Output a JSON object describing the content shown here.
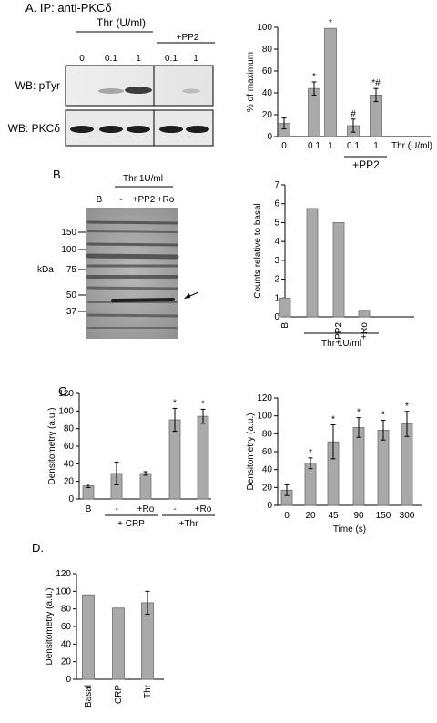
{
  "panelA": {
    "letter": "A. IP: anti-PKCδ",
    "treatment": "Thr (U/ml)",
    "pp2": "+PP2",
    "lanes": [
      "0",
      "0.1",
      "1",
      "0.1",
      "1"
    ],
    "blot1": "WB: pTyr",
    "blot2": "WB: PKCδ"
  },
  "panelB": {
    "letter": "B.",
    "treatment": "Thr 1U/ml",
    "lanes": [
      "B",
      "-",
      "+PP2",
      "+Ro"
    ],
    "markers": [
      "150",
      "100",
      "75",
      "50",
      "37"
    ],
    "kda": "kDa"
  },
  "panelC": {
    "letter": "C."
  },
  "panelD": {
    "letter": "D."
  },
  "chart_data": [
    {
      "id": "A",
      "type": "bar",
      "categories": [
        "0",
        "0.1",
        "1",
        "0.1",
        "1"
      ],
      "values": [
        12,
        44,
        99,
        10,
        38
      ],
      "errors": [
        5,
        6,
        0,
        6,
        6
      ],
      "marks": [
        "",
        "*",
        "*",
        "#",
        "*#"
      ],
      "ylabel": "% of maximum",
      "xlabel": "Thr (U/ml)",
      "group_label": "+PP2",
      "yticks": [
        "0",
        "20",
        "40",
        "60",
        "80",
        "100"
      ],
      "ylim": [
        0,
        110
      ]
    },
    {
      "id": "B",
      "type": "bar",
      "categories": [
        "B",
        "",
        "+PP2",
        "+Ro"
      ],
      "values": [
        1.0,
        5.75,
        5.0,
        0.35
      ],
      "ylabel": "Counts relative to basal",
      "group_label": "Thr 1U/ml",
      "yticks": [
        "0",
        "1",
        "2",
        "3",
        "4",
        "5",
        "6",
        "7"
      ],
      "ylim": [
        0,
        7
      ]
    },
    {
      "id": "C1",
      "type": "bar",
      "categories": [
        "B",
        "-",
        "+Ro",
        "-",
        "+Ro"
      ],
      "values": [
        15,
        29,
        29,
        90,
        94
      ],
      "errors": [
        2,
        13,
        2,
        13,
        8
      ],
      "marks": [
        "",
        "",
        "",
        "*",
        "*"
      ],
      "ylabel": "Densitometry (a.u.)",
      "groups": [
        "+ CRP",
        "+Thr"
      ],
      "yticks": [
        "0",
        "20",
        "40",
        "60",
        "80",
        "100",
        "120"
      ],
      "ylim": [
        0,
        120
      ]
    },
    {
      "id": "C2",
      "type": "bar",
      "categories": [
        "0",
        "20",
        "45",
        "90",
        "150",
        "300"
      ],
      "values": [
        17,
        47,
        71,
        87,
        84,
        91
      ],
      "errors": [
        6,
        6,
        19,
        11,
        11,
        14
      ],
      "marks": [
        "",
        "*",
        "*",
        "*",
        "*",
        "*"
      ],
      "ylabel": "Densitometry (a.u.)",
      "xlabel": "Time (s)",
      "yticks": [
        "0",
        "20",
        "40",
        "60",
        "80",
        "100",
        "120"
      ],
      "ylim": [
        0,
        120
      ]
    },
    {
      "id": "D",
      "type": "bar",
      "categories": [
        "Basal",
        "CRP",
        "Thr"
      ],
      "values": [
        96,
        81,
        87
      ],
      "errors": [
        0,
        0,
        13
      ],
      "ylabel": "Densitometry (a.u.)",
      "yticks": [
        "0",
        "20",
        "40",
        "60",
        "80",
        "100",
        "120"
      ],
      "ylim": [
        0,
        120
      ]
    }
  ]
}
